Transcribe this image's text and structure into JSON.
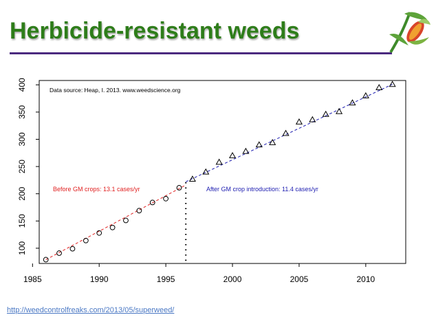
{
  "header": {
    "title": "Herbicide-resistant weeds",
    "logo_icon": "corn-plant-logo-icon",
    "title_color": "#2e7d1a",
    "rule_color": "#4b2a7f"
  },
  "footer": {
    "link_text": "http://weedcontrolfreaks.com/2013/05/superweed/"
  },
  "chart_data": {
    "type": "scatter",
    "title": "",
    "xlabel": "",
    "ylabel": "",
    "xlim": [
      1985.5,
      2013
    ],
    "ylim": [
      72,
      408
    ],
    "xticks": [
      "1985",
      "1990",
      "1995",
      "2000",
      "2005",
      "2010"
    ],
    "yticks": [
      "100",
      "150",
      "200",
      "250",
      "300",
      "350",
      "400"
    ],
    "grid": false,
    "annotation": "Data source: Heap, I. 2013. www.weedscience.org",
    "divider_x": 1996.5,
    "series": [
      {
        "label": "Before GM crops: 13.1 cases/yr",
        "marker": "circle",
        "color": "#e02020",
        "x": [
          1986,
          1987,
          1988,
          1989,
          1990,
          1991,
          1992,
          1993,
          1994,
          1995,
          1996
        ],
        "y": [
          79,
          91,
          99,
          114,
          128,
          138,
          151,
          169,
          184,
          191,
          211
        ],
        "fit": [
          [
            1986,
            79
          ],
          [
            1996.5,
            216
          ]
        ]
      },
      {
        "label": "After GM crop introduction: 11.4 cases/yr",
        "marker": "triangle",
        "color": "#1c1cb0",
        "x": [
          1997,
          1998,
          1999,
          2000,
          2001,
          2002,
          2003,
          2004,
          2005,
          2006,
          2007,
          2008,
          2009,
          2010,
          2011,
          2012
        ],
        "y": [
          227,
          240,
          258,
          270,
          278,
          290,
          294,
          311,
          332,
          336,
          346,
          351,
          367,
          380,
          395,
          401
        ],
        "fit": [
          [
            1996.5,
            222
          ],
          [
            2012,
            401
          ]
        ]
      }
    ]
  }
}
